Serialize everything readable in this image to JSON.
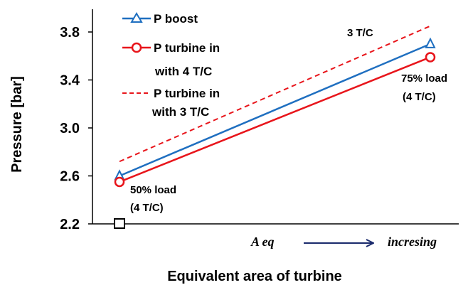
{
  "chart_data": {
    "type": "line",
    "xlabel": "Equivalent area of turbine",
    "ylabel": "Pressure [bar]",
    "ylim": [
      2.2,
      3.8
    ],
    "yticks": [
      "2.2",
      "2.6",
      "3.0",
      "3.4",
      "3.8"
    ],
    "x_left_label": "A eq",
    "x_right_label": "incresing",
    "grid": false,
    "series": [
      {
        "name": "P boost",
        "y": [
          2.6,
          3.7
        ],
        "color": "#1f6fc0",
        "marker": "triangle",
        "dash": false
      },
      {
        "name": "P turbine in with 4 T/C",
        "y": [
          2.55,
          3.59
        ],
        "color": "#e8151b",
        "marker": "circle",
        "dash": false
      },
      {
        "name": "P turbine in with 3 T/C",
        "y": [
          2.72,
          3.85
        ],
        "color": "#e8151b",
        "marker": "none",
        "dash": true
      }
    ],
    "legend": [
      {
        "lines": [
          "P boost"
        ]
      },
      {
        "lines": [
          "P turbine in",
          "with 4 T/C"
        ]
      },
      {
        "lines": [
          "P turbine in",
          "with 3 T/C"
        ]
      }
    ],
    "annotations": {
      "start_load": [
        "50% load",
        "(4 T/C)"
      ],
      "end_load": [
        "75% load",
        "(4 T/C)"
      ],
      "three_tc": "3 T/C"
    }
  }
}
